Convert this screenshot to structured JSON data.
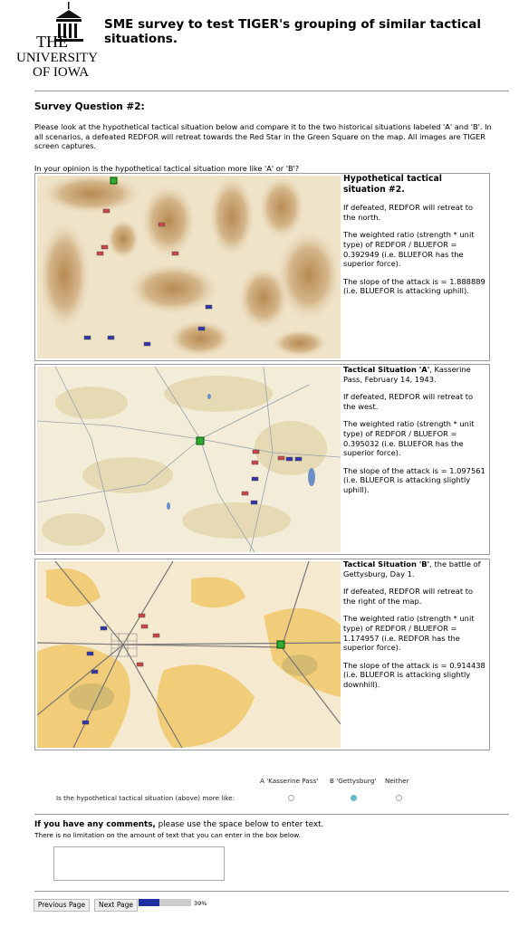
{
  "header": {
    "logo": [
      "THE",
      "UNIVERSITY",
      "OF IOWA"
    ],
    "title": "SME survey to test TIGER's grouping of similar tactical situations."
  },
  "question": {
    "heading": "Survey Question #2:",
    "instructions": "Please look at the hypothetical tactical situation below and compare it to the two historical situations labeled 'A' and 'B'. In all scenarios, a defeated REDFOR will retreat towards the Red Star in the Green Square on the map. All images are TIGER screen captures.",
    "prompt": "In your opinion is the hypothetical tactical situation more like 'A' or 'B'?"
  },
  "panels": [
    {
      "title": "Hypothetical tactical situation #2.",
      "paragraphs": [
        "If defeated, REDFOR will retreat to the north.",
        "The weighted ratio (strength * unit type) of REDFOR / BLUEFOR = 0.392949 (i.e. BLUEFOR has the superior force).",
        "The slope of the attack is = 1.888889 (i.e. BLUEFOR is attacking uphill)."
      ]
    },
    {
      "title": "Tactical Situation 'A'",
      "subtitle": ", Kasserine Pass, February 14, 1943.",
      "paragraphs": [
        "If defeated, REDFOR will retreat to the west.",
        "The weighted ratio (strength * unit type) of REDFOR / BLUEFOR = 0.395032 (i.e. BLUEFOR has the superior force).",
        "The slope of the attack is = 1.097561 (i.e. BLUEFOR is attacking slightly uphill)."
      ]
    },
    {
      "title": "Tactical Situation 'B'",
      "subtitle": ", the battle of Gettysburg, Day 1.",
      "paragraphs": [
        "If defeated, REDFOR will retreat to the right of the map.",
        "The weighted ratio (strength * unit type) of REDFOR / BLUEFOR = 1.174957 (i.e. REDFOR has the superior force).",
        "The slope of the attack is = 0.914438 (i.e. BLUEFOR is attacking slightly downhill)."
      ]
    }
  ],
  "rating": {
    "options": [
      "A 'Kasserine Pass'",
      "B 'Gettysburg'",
      "Neither"
    ],
    "question": "Is the hypothetical tactical situation (above) more like:",
    "selected": 1
  },
  "comments": {
    "lead": "If you have any comments,",
    "text": "please use the space below to enter text.",
    "note": "There is no limitation on the amount of text that you can enter in the box below."
  },
  "navigation": {
    "previous": "Previous Page",
    "next": "Next Page",
    "progress": {
      "value": 39,
      "label": "39%"
    }
  }
}
